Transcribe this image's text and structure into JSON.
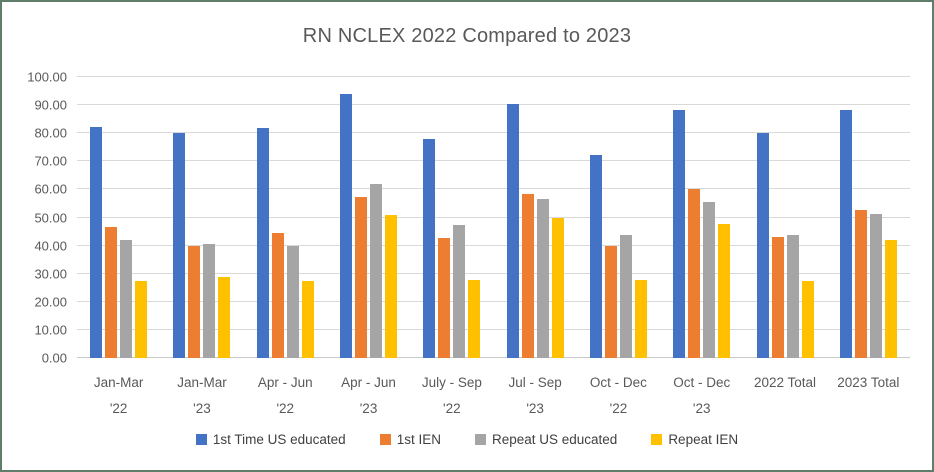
{
  "title": "RN NCLEX 2022 Compared to 2023",
  "colors": {
    "frame_border": "#5f7d68",
    "axis_text": "#595959",
    "title_text": "#595959",
    "legend_text": "#404040",
    "gridline": "#d9d9d9",
    "background": "#ffffff"
  },
  "chart_data": {
    "type": "bar",
    "title": "RN NCLEX 2022 Compared to 2023",
    "categories": [
      "Jan-Mar '22",
      "Jan-Mar '23",
      "Apr - Jun '22",
      "Apr - Jun '23",
      "July - Sep '22",
      "Jul - Sep '23",
      "Oct - Dec '22",
      "Oct - Dec '23",
      "2022 Total",
      "2023 Total"
    ],
    "series": [
      {
        "name": "1st Time US educated",
        "color": "#4472C4",
        "values": [
          82.3,
          80.2,
          81.9,
          94.0,
          77.9,
          90.5,
          72.3,
          88.2,
          79.9,
          88.4
        ]
      },
      {
        "name": "1st IEN",
        "color": "#ED7D31",
        "values": [
          46.5,
          39.8,
          44.5,
          57.4,
          42.8,
          58.2,
          40.0,
          60.3,
          43.2,
          52.5
        ]
      },
      {
        "name": "Repeat US educated",
        "color": "#A5A5A5",
        "values": [
          42.0,
          40.6,
          39.8,
          61.9,
          47.3,
          56.5,
          43.9,
          55.5,
          43.6,
          51.1
        ]
      },
      {
        "name": "Repeat IEN",
        "color": "#FFC000",
        "values": [
          27.4,
          28.8,
          27.4,
          51.0,
          27.7,
          49.9,
          27.8,
          47.7,
          27.4,
          42.0
        ]
      }
    ],
    "xlabel": "",
    "ylabel": "",
    "ylim": [
      0,
      100
    ],
    "ytick_step": 10,
    "ytick_labels": [
      "0.00",
      "10.00",
      "20.00",
      "30.00",
      "40.00",
      "50.00",
      "60.00",
      "70.00",
      "80.00",
      "90.00",
      "100.00"
    ],
    "grid": true,
    "legend_position": "bottom"
  }
}
